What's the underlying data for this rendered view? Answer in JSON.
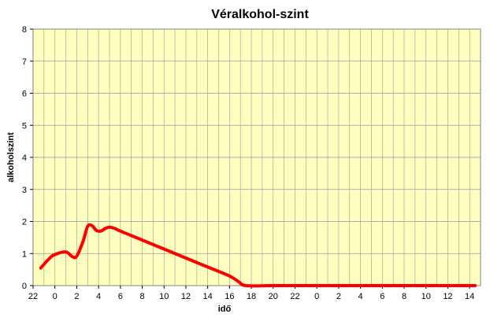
{
  "chart_data": {
    "type": "line",
    "title": "Véralkohol-szint",
    "xlabel": "idő",
    "ylabel": "alkoholszint",
    "ylim": [
      0,
      8
    ],
    "yticks": [
      "0",
      "1",
      "2",
      "3",
      "4",
      "5",
      "6",
      "7",
      "8"
    ],
    "xtick_labels": [
      "22",
      "0",
      "2",
      "4",
      "6",
      "8",
      "10",
      "12",
      "14",
      "16",
      "18",
      "20",
      "22",
      "0",
      "2",
      "4",
      "6",
      "8",
      "10",
      "12",
      "14"
    ],
    "grid": true,
    "legend": "none",
    "colors": {
      "plot_background": "#ffffc0",
      "grid": "#999999",
      "series_line": "#ff0000",
      "frame": "#808080"
    },
    "series": [
      {
        "x": [
          -1.3,
          -0.5,
          0,
          1,
          1.6,
          2,
          2.6,
          3,
          3.4,
          3.8,
          4.2,
          4.6,
          5,
          5.5,
          6,
          8,
          10,
          12,
          14,
          16,
          16.8,
          17.5,
          20,
          24,
          28,
          32,
          36,
          38.5
        ],
        "y": [
          0.55,
          0.85,
          0.97,
          1.05,
          0.9,
          0.92,
          1.4,
          1.85,
          1.87,
          1.72,
          1.7,
          1.78,
          1.82,
          1.78,
          1.7,
          1.42,
          1.14,
          0.86,
          0.58,
          0.3,
          0.13,
          0,
          0,
          0,
          0,
          0,
          0,
          0
        ]
      }
    ]
  }
}
